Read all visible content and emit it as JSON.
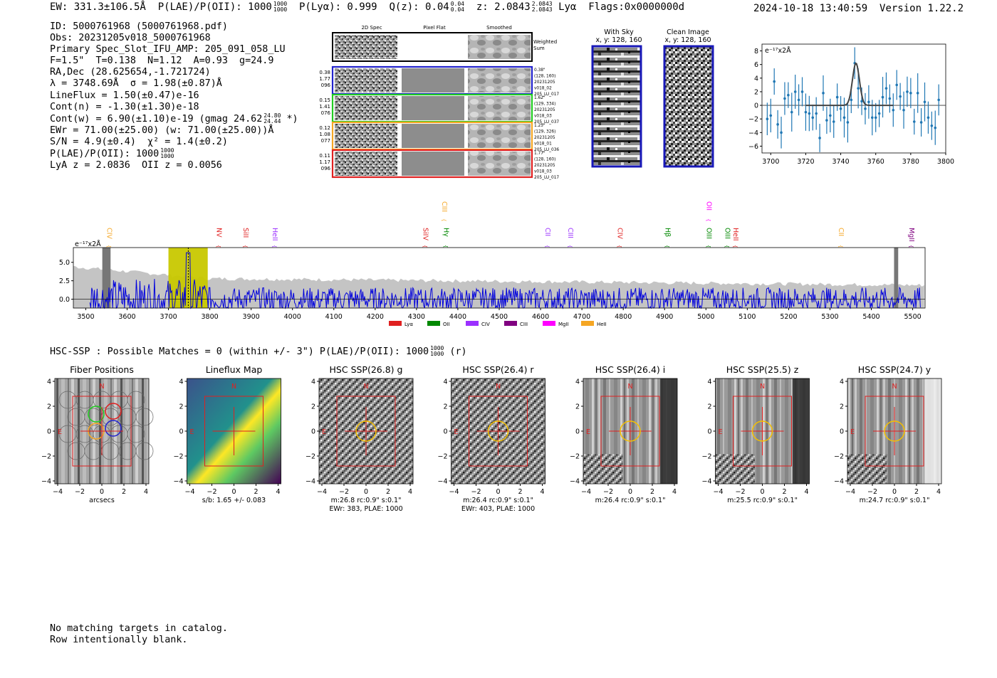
{
  "header": {
    "ew": "EW: 331.3±106.5Å",
    "plae_label": "P(LAE)/P(OII): 1000",
    "plae_hi": "1000",
    "plae_lo": "1000",
    "plya": "P(Lyα): 0.999",
    "qz": "Q(z): 0.04",
    "qz_hi": "0.04",
    "qz_lo": "0.04",
    "z": "z: 2.0843",
    "z_hi": "2.0843",
    "z_lo": "2.0843",
    "z_line": "Lyα",
    "flags": "Flags:0x0000000d",
    "datetime": "2024-10-18 13:40:59",
    "version": "Version 1.22.2"
  },
  "info": {
    "id": "ID: 5000761968 (5000761968.pdf)",
    "obs": "Obs: 20231205v018_5000761968",
    "primary": "Primary Spec_Slot_IFU_AMP: 205_091_058_LU",
    "params": "F=1.5\"  T=0.138  N=1.12  A=0.93  g=24.9",
    "radec": "RA,Dec (28.625654,-1.721724)",
    "lambda": "λ = 3748.69Å  σ = 1.98(±0.87)Å",
    "lineflux": "LineFlux = 1.50(±0.47)e-16",
    "contn": "Cont(n) = -1.30(±1.30)e-18",
    "contw": "Cont(w) = 6.90(±1.10)e-19 (gmag 24.62",
    "gmag_hi": "24.80",
    "gmag_lo": "24.44",
    "contw_end": "*)",
    "ewr": "EWr = 71.00(±25.00) (w: 71.00(±25.00))Å",
    "sn": "S/N = 4.9(±0.4)  χ² = 1.4(±0.2)",
    "plae": "P(LAE)/P(OII): 1000",
    "plae_hi": "1000",
    "plae_lo": "1000",
    "lyaz": "LyA z = 2.0836  OII z = 0.0056"
  },
  "spec2d": {
    "col_titles": [
      "2D Spec",
      "Pixel Flat",
      "Smoothed"
    ],
    "weighted_sum": [
      "Weighted",
      "Sum"
    ],
    "fibers": [
      {
        "left": [
          "0.38",
          "1.77",
          "096"
        ],
        "right": [
          "0.38\"",
          "(128, 160)",
          "20231205",
          "v018_02",
          "205_LU_017"
        ],
        "color": "#2222cc"
      },
      {
        "left": [
          "0.15",
          "1.41",
          "076"
        ],
        "right": [
          "1.62\"",
          "(129, 334)",
          "20231205",
          "v018_03",
          "205_LU_037"
        ],
        "color": "#22cc22"
      },
      {
        "left": [
          "0.12",
          "1.08",
          "077"
        ],
        "right": [
          "1.25\"",
          "(129, 326)",
          "20231205",
          "v018_01",
          "205_LU_036"
        ],
        "color": "#f5a623"
      },
      {
        "left": [
          "0.11",
          "1.17",
          "096"
        ],
        "right": [
          "1.77\"",
          "(128, 160)",
          "20231205",
          "v018_03",
          "205_LU_017"
        ],
        "color": "#e02020"
      }
    ]
  },
  "sky_panel": {
    "title": "With Sky",
    "coords": "x, y: 128, 160"
  },
  "clean_panel": {
    "title": "Clean Image",
    "coords": "x, y: 128, 160"
  },
  "zoom_plot": {
    "ylabel": "e⁻¹⁷x2Å",
    "x_ticks": [
      "3700",
      "3720",
      "3740",
      "3760",
      "3780",
      "3800"
    ],
    "y_ticks": [
      "8",
      "6",
      "4",
      "2",
      "0",
      "−2",
      "−4",
      "−6"
    ],
    "xlim": [
      3695,
      3800
    ],
    "ylim": [
      -7,
      9
    ],
    "points_x": [
      3698,
      3700,
      3702,
      3704,
      3706,
      3708,
      3710,
      3712,
      3714,
      3716,
      3718,
      3720,
      3722,
      3724,
      3726,
      3728,
      3730,
      3732,
      3734,
      3736,
      3738,
      3740,
      3742,
      3744,
      3746,
      3748,
      3750,
      3752,
      3754,
      3756,
      3758,
      3760,
      3762,
      3764,
      3766,
      3768,
      3770,
      3772,
      3774,
      3776,
      3778,
      3780,
      3782,
      3784,
      3786,
      3788,
      3790,
      3792,
      3794,
      3796
    ],
    "points_y": [
      -2,
      -1.5,
      3.5,
      -2.8,
      -4,
      1,
      1.5,
      -1,
      2,
      0.8,
      2,
      -1,
      -1.2,
      -1.8,
      -1.2,
      -4.8,
      1.8,
      -2.2,
      -1.5,
      -2.4,
      1.2,
      -0.5,
      -1.8,
      -2.5,
      0.8,
      6.2,
      2.5,
      0.6,
      -0.5,
      0.5,
      -1.8,
      -1.8,
      -1.2,
      1.2,
      2.5,
      1,
      -0.7,
      3,
      1.3,
      -0.7,
      2,
      1.8,
      -2.4,
      1.8,
      -2.5,
      0.5,
      -1.8,
      -3,
      -3.3,
      0.8
    ],
    "fit_center": 3748.69,
    "fit_sigma": 1.98,
    "fit_amp": 6.2
  },
  "full_spectrum": {
    "ylabel": "e⁻¹⁷x2Å",
    "x_ticks": [
      "3500",
      "3600",
      "3700",
      "3800",
      "3900",
      "4000",
      "4100",
      "4200",
      "4300",
      "4400",
      "4500",
      "4600",
      "4700",
      "4800",
      "4900",
      "5000",
      "5100",
      "5200",
      "5300",
      "5400",
      "5500"
    ],
    "y_ticks": [
      "5.0",
      "2.5",
      "0.0"
    ],
    "xlim": [
      3470,
      5530
    ],
    "ylim": [
      -1.2,
      7
    ],
    "highlight": [
      3700,
      3795
    ],
    "lines": [
      {
        "label": "CIV",
        "wave": 3545,
        "color": "#f5a623",
        "tier": 1
      },
      {
        "label": "NV",
        "wave": 3810,
        "color": "#e02020",
        "tier": 1
      },
      {
        "label": "SiII",
        "wave": 3875,
        "color": "#e02020",
        "tier": 1
      },
      {
        "label": "HeII",
        "wave": 3945,
        "color": "#9b30ff",
        "tier": 1
      },
      {
        "label": "SiIV",
        "wave": 4310,
        "color": "#e02020",
        "tier": 1
      },
      {
        "label": "CIII",
        "wave": 4355,
        "color": "#f5a623",
        "tier": 0
      },
      {
        "label": "Hγ",
        "wave": 4360,
        "color": "#008800",
        "tier": 1
      },
      {
        "label": "CII",
        "wave": 4605,
        "color": "#9b30ff",
        "tier": 1
      },
      {
        "label": "CIII",
        "wave": 4660,
        "color": "#9b30ff",
        "tier": 1
      },
      {
        "label": "CIV",
        "wave": 4780,
        "color": "#e02020",
        "tier": 1
      },
      {
        "label": "Hβ",
        "wave": 4895,
        "color": "#008800",
        "tier": 1
      },
      {
        "label": "OII",
        "wave": 4995,
        "color": "#ff00ff",
        "tier": 0
      },
      {
        "label": "OIII",
        "wave": 4995,
        "color": "#008800",
        "tier": 1
      },
      {
        "label": "OIII",
        "wave": 5040,
        "color": "#008800",
        "tier": 1
      },
      {
        "label": "HeII",
        "wave": 5060,
        "color": "#e02020",
        "tier": 1
      },
      {
        "label": "CII",
        "wave": 5315,
        "color": "#f5a623",
        "tier": 1
      },
      {
        "label": "MgII",
        "wave": 5485,
        "color": "#800080",
        "tier": 1
      }
    ],
    "legend": [
      {
        "label": "Lyα",
        "color": "#e02020"
      },
      {
        "label": "OII",
        "color": "#008800"
      },
      {
        "label": "CIV",
        "color": "#9b30ff"
      },
      {
        "label": "CIII",
        "color": "#800080"
      },
      {
        "label": "MgII",
        "color": "#ff00ff"
      },
      {
        "label": "HeII",
        "color": "#f5a623"
      }
    ]
  },
  "hsc": {
    "summary": "HSC-SSP : Possible Matches = 0 (within +/- 3\")  P(LAE)/P(OII): 1000",
    "plae_hi": "1000",
    "plae_lo": "1000",
    "band": "(r)",
    "axis_ticks": [
      "−4",
      "−2",
      "0",
      "2",
      "4"
    ],
    "north": "N",
    "east": "E",
    "cutouts": [
      {
        "title": "Fiber Positions",
        "cap1": "arcsecs",
        "cap2": "",
        "kind": "fiber"
      },
      {
        "title": "Lineflux Map",
        "cap1": "s/b: 1.65 +/- 0.083",
        "cap2": "",
        "kind": "flux"
      },
      {
        "title": "HSC SSP(26.8) g",
        "cap1": "m:26.8 rc:0.9\"  s:0.1\"",
        "cap2": "EWr: 383, PLAE: 1000",
        "kind": "noise"
      },
      {
        "title": "HSC SSP(26.4) r",
        "cap1": "m:26.4 rc:0.9\"  s:0.1\"",
        "cap2": "EWr: 403, PLAE: 1000",
        "kind": "noise"
      },
      {
        "title": "HSC SSP(26.4) i",
        "cap1": "m:26.4 rc:0.9\"  s:0.1\"",
        "cap2": "",
        "kind": "stripe"
      },
      {
        "title": "HSC SSP(25.5) z",
        "cap1": "m:25.5 rc:0.9\"  s:0.1\"",
        "cap2": "",
        "kind": "stripe"
      },
      {
        "title": "HSC SSP(24.7) y",
        "cap1": "m:24.7 rc:0.9\"  s:0.1\"",
        "cap2": "",
        "kind": "stripe"
      }
    ]
  },
  "footer": {
    "line1": "No matching targets in catalog.",
    "line2": "Row intentionally blank."
  }
}
